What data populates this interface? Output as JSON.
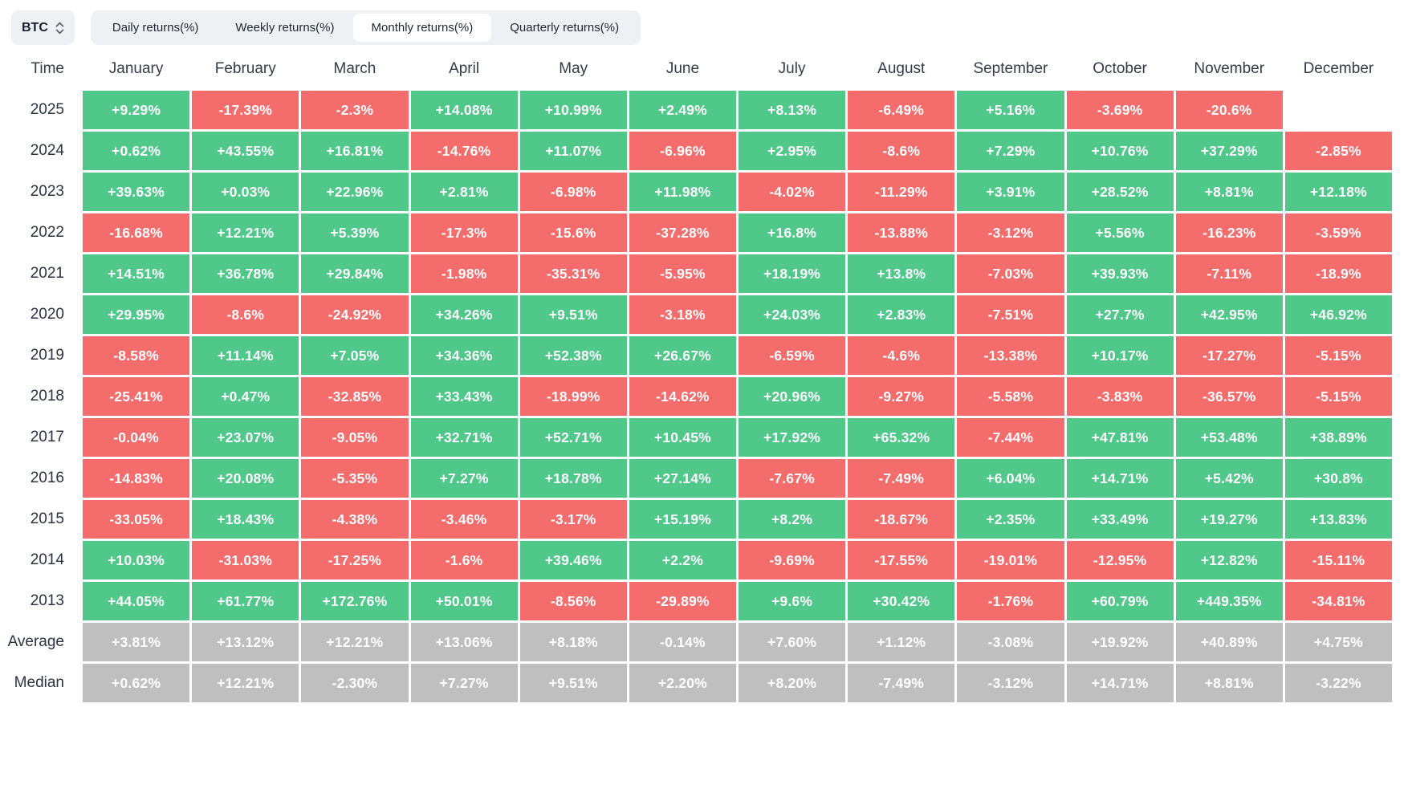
{
  "controls": {
    "symbol_selector": {
      "value": "BTC"
    },
    "tabs": [
      {
        "label": "Daily returns(%)",
        "active": false
      },
      {
        "label": "Weekly returns(%)",
        "active": false
      },
      {
        "label": "Monthly returns(%)",
        "active": true
      },
      {
        "label": "Quarterly returns(%)",
        "active": false
      }
    ]
  },
  "colors": {
    "positive": "#4FC88A",
    "negative": "#F56C6C",
    "summary": "#BFBFBF",
    "tab_bar_bg": "#EEF0F3",
    "active_tab_bg": "#FFFFFF",
    "header_text": "#333B49"
  },
  "chart_data": {
    "type": "heatmap",
    "title": "BTC Monthly returns(%)",
    "columns": [
      "Time",
      "January",
      "February",
      "March",
      "April",
      "May",
      "June",
      "July",
      "August",
      "September",
      "October",
      "November",
      "December"
    ],
    "rows": [
      {
        "label": "2025",
        "kind": "year",
        "values": [
          "+9.29%",
          "-17.39%",
          "-2.3%",
          "+14.08%",
          "+10.99%",
          "+2.49%",
          "+8.13%",
          "-6.49%",
          "+5.16%",
          "-3.69%",
          "-20.6%",
          null
        ]
      },
      {
        "label": "2024",
        "kind": "year",
        "values": [
          "+0.62%",
          "+43.55%",
          "+16.81%",
          "-14.76%",
          "+11.07%",
          "-6.96%",
          "+2.95%",
          "-8.6%",
          "+7.29%",
          "+10.76%",
          "+37.29%",
          "-2.85%"
        ]
      },
      {
        "label": "2023",
        "kind": "year",
        "values": [
          "+39.63%",
          "+0.03%",
          "+22.96%",
          "+2.81%",
          "-6.98%",
          "+11.98%",
          "-4.02%",
          "-11.29%",
          "+3.91%",
          "+28.52%",
          "+8.81%",
          "+12.18%"
        ]
      },
      {
        "label": "2022",
        "kind": "year",
        "values": [
          "-16.68%",
          "+12.21%",
          "+5.39%",
          "-17.3%",
          "-15.6%",
          "-37.28%",
          "+16.8%",
          "-13.88%",
          "-3.12%",
          "+5.56%",
          "-16.23%",
          "-3.59%"
        ]
      },
      {
        "label": "2021",
        "kind": "year",
        "values": [
          "+14.51%",
          "+36.78%",
          "+29.84%",
          "-1.98%",
          "-35.31%",
          "-5.95%",
          "+18.19%",
          "+13.8%",
          "-7.03%",
          "+39.93%",
          "-7.11%",
          "-18.9%"
        ]
      },
      {
        "label": "2020",
        "kind": "year",
        "values": [
          "+29.95%",
          "-8.6%",
          "-24.92%",
          "+34.26%",
          "+9.51%",
          "-3.18%",
          "+24.03%",
          "+2.83%",
          "-7.51%",
          "+27.7%",
          "+42.95%",
          "+46.92%"
        ]
      },
      {
        "label": "2019",
        "kind": "year",
        "values": [
          "-8.58%",
          "+11.14%",
          "+7.05%",
          "+34.36%",
          "+52.38%",
          "+26.67%",
          "-6.59%",
          "-4.6%",
          "-13.38%",
          "+10.17%",
          "-17.27%",
          "-5.15%"
        ]
      },
      {
        "label": "2018",
        "kind": "year",
        "values": [
          "-25.41%",
          "+0.47%",
          "-32.85%",
          "+33.43%",
          "-18.99%",
          "-14.62%",
          "+20.96%",
          "-9.27%",
          "-5.58%",
          "-3.83%",
          "-36.57%",
          "-5.15%"
        ]
      },
      {
        "label": "2017",
        "kind": "year",
        "values": [
          "-0.04%",
          "+23.07%",
          "-9.05%",
          "+32.71%",
          "+52.71%",
          "+10.45%",
          "+17.92%",
          "+65.32%",
          "-7.44%",
          "+47.81%",
          "+53.48%",
          "+38.89%"
        ]
      },
      {
        "label": "2016",
        "kind": "year",
        "values": [
          "-14.83%",
          "+20.08%",
          "-5.35%",
          "+7.27%",
          "+18.78%",
          "+27.14%",
          "-7.67%",
          "-7.49%",
          "+6.04%",
          "+14.71%",
          "+5.42%",
          "+30.8%"
        ]
      },
      {
        "label": "2015",
        "kind": "year",
        "values": [
          "-33.05%",
          "+18.43%",
          "-4.38%",
          "-3.46%",
          "-3.17%",
          "+15.19%",
          "+8.2%",
          "-18.67%",
          "+2.35%",
          "+33.49%",
          "+19.27%",
          "+13.83%"
        ]
      },
      {
        "label": "2014",
        "kind": "year",
        "values": [
          "+10.03%",
          "-31.03%",
          "-17.25%",
          "-1.6%",
          "+39.46%",
          "+2.2%",
          "-9.69%",
          "-17.55%",
          "-19.01%",
          "-12.95%",
          "+12.82%",
          "-15.11%"
        ]
      },
      {
        "label": "2013",
        "kind": "year",
        "values": [
          "+44.05%",
          "+61.77%",
          "+172.76%",
          "+50.01%",
          "-8.56%",
          "-29.89%",
          "+9.6%",
          "+30.42%",
          "-1.76%",
          "+60.79%",
          "+449.35%",
          "-34.81%"
        ]
      },
      {
        "label": "Average",
        "kind": "summary",
        "values": [
          "+3.81%",
          "+13.12%",
          "+12.21%",
          "+13.06%",
          "+8.18%",
          "-0.14%",
          "+7.60%",
          "+1.12%",
          "-3.08%",
          "+19.92%",
          "+40.89%",
          "+4.75%"
        ]
      },
      {
        "label": "Median",
        "kind": "summary",
        "values": [
          "+0.62%",
          "+12.21%",
          "-2.30%",
          "+7.27%",
          "+9.51%",
          "+2.20%",
          "+8.20%",
          "-7.49%",
          "-3.12%",
          "+14.71%",
          "+8.81%",
          "-3.22%"
        ]
      }
    ]
  }
}
